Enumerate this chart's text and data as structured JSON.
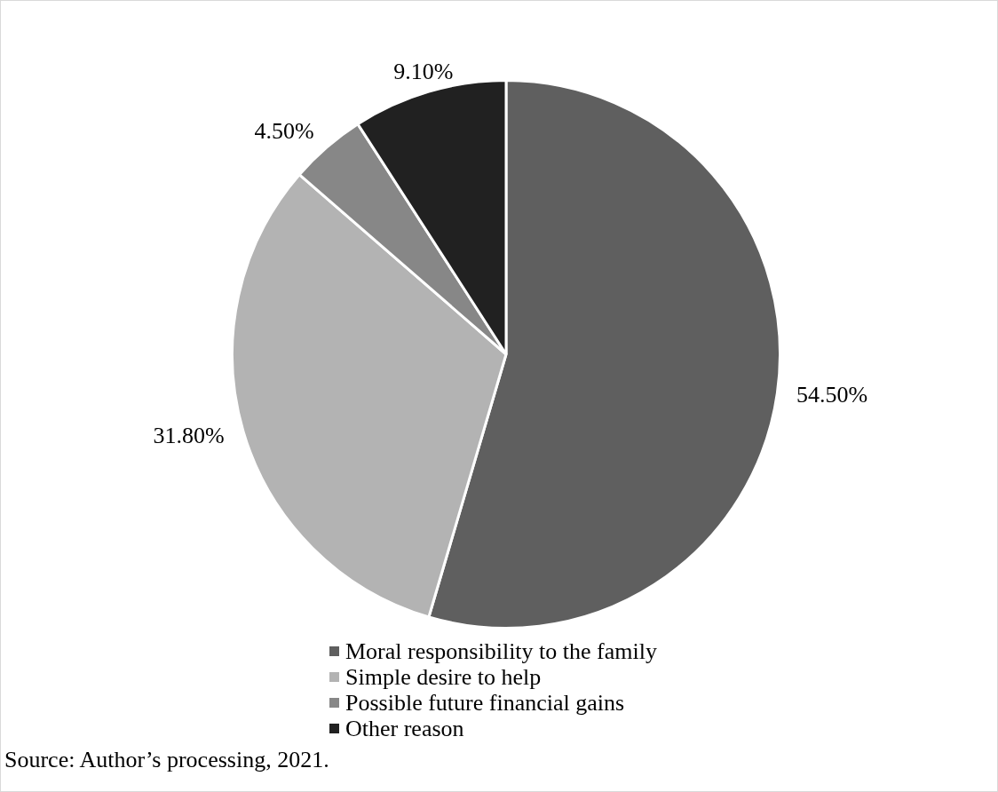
{
  "chart_data": {
    "type": "pie",
    "categories": [
      "Moral responsibility to the family",
      "Simple desire to help",
      "Possible future financial gains",
      "Other reason"
    ],
    "values": [
      54.5,
      31.8,
      4.5,
      9.1
    ],
    "colors": [
      "#5f5f5f",
      "#b3b3b3",
      "#878787",
      "#212121"
    ],
    "value_labels": [
      "54.50%",
      "31.80%",
      "4.50%",
      "9.10%"
    ],
    "legend": "bottom",
    "annotations": [
      "Source: Author’s processing, 2021."
    ]
  }
}
